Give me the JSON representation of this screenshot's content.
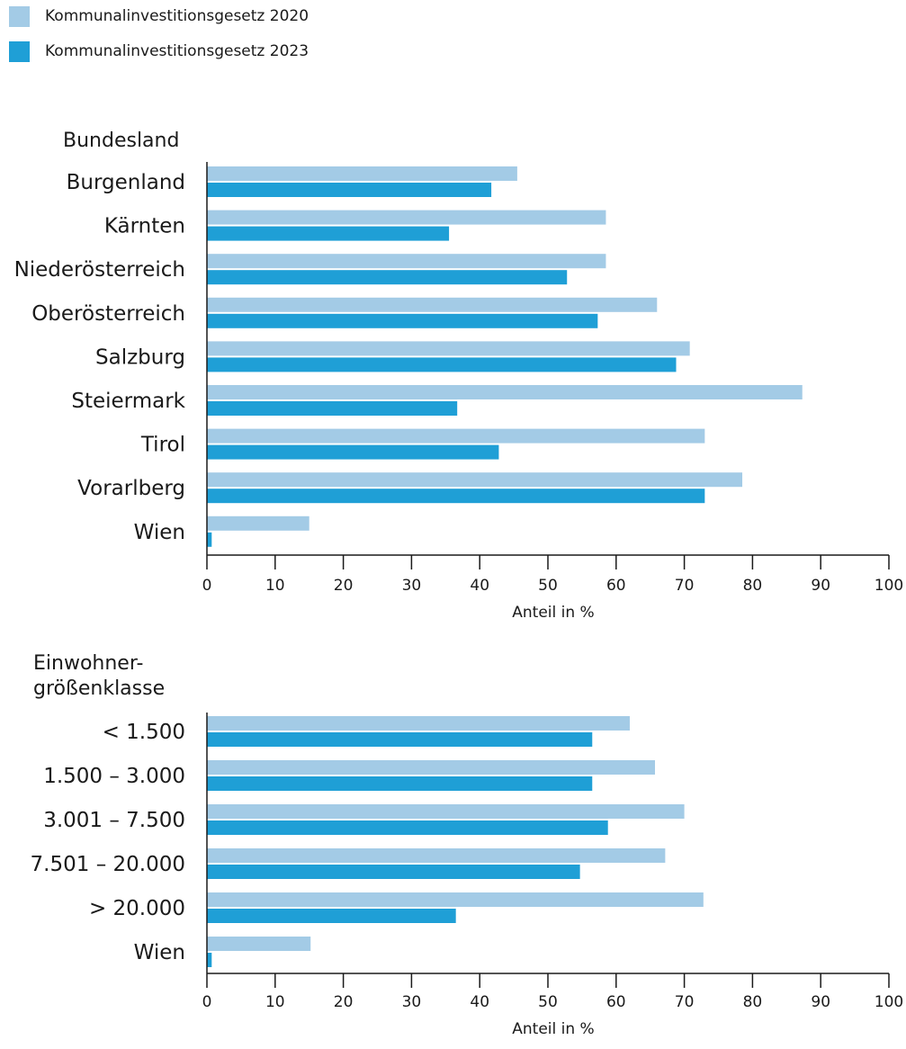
{
  "colors": {
    "series_2020": "#a3cbe6",
    "series_2023": "#1f9fd6"
  },
  "legend": [
    {
      "name": "Kommunalinvestitionsgesetz 2020",
      "color": "#a3cbe6"
    },
    {
      "name": "Kommunalinvestitionsgesetz 2023",
      "color": "#1f9fd6"
    }
  ],
  "chart_data": [
    {
      "type": "bar",
      "orientation": "horizontal",
      "group_label": "Bundesland",
      "categories": [
        "Burgenland",
        "Kärnten",
        "Niederösterreich",
        "Oberösterreich",
        "Salzburg",
        "Steiermark",
        "Tirol",
        "Vorarlberg",
        "Wien"
      ],
      "series": [
        {
          "name": "Kommunalinvestitionsgesetz 2020",
          "values": [
            45.5,
            58.5,
            58.5,
            66,
            70.8,
            87.3,
            73,
            78.5,
            15
          ]
        },
        {
          "name": "Kommunalinvestitionsgesetz 2023",
          "values": [
            41.7,
            35.5,
            52.8,
            57.3,
            68.8,
            36.7,
            42.8,
            73,
            0.7
          ]
        }
      ],
      "xlabel": "Anteil in %",
      "xlim": [
        0,
        100
      ],
      "xticks": [
        "0",
        "10",
        "20",
        "30",
        "40",
        "50",
        "60",
        "70",
        "80",
        "90",
        "100"
      ],
      "legend_position": "top-left"
    },
    {
      "type": "bar",
      "orientation": "horizontal",
      "group_label_lines": [
        "Einwohner-",
        "größenklasse"
      ],
      "categories": [
        "< 1.500",
        "1.500 – 3.000",
        "3.001 – 7.500",
        "7.501 – 20.000",
        "> 20.000",
        "Wien"
      ],
      "series": [
        {
          "name": "Kommunalinvestitionsgesetz 2020",
          "values": [
            62,
            65.7,
            70,
            67.2,
            72.8,
            15.2
          ]
        },
        {
          "name": "Kommunalinvestitionsgesetz 2023",
          "values": [
            56.5,
            56.5,
            58.8,
            54.7,
            36.5,
            0.7
          ]
        }
      ],
      "xlabel": "Anteil in %",
      "xlim": [
        0,
        100
      ],
      "xticks": [
        "0",
        "10",
        "20",
        "30",
        "40",
        "50",
        "60",
        "70",
        "80",
        "90",
        "100"
      ]
    }
  ]
}
